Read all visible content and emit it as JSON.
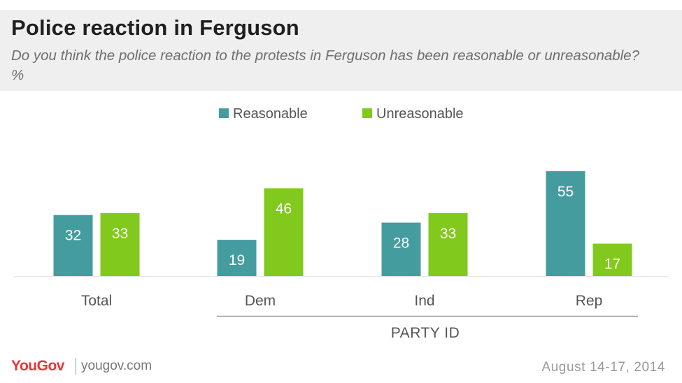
{
  "header": {
    "title": "Police reaction in Ferguson",
    "subtitle": "Do you think the police reaction to the protests in Ferguson has been reasonable or unreasonable? %"
  },
  "chart_data": {
    "type": "bar",
    "categories": [
      "Total",
      "Dem",
      "Ind",
      "Rep"
    ],
    "series": [
      {
        "name": "Reasonable",
        "color": "#459c9f",
        "values": [
          32,
          19,
          28,
          55
        ]
      },
      {
        "name": "Unreasonable",
        "color": "#82c91e",
        "values": [
          33,
          46,
          33,
          17
        ]
      }
    ],
    "group_label": "PARTY ID",
    "ylim": [
      0,
      60
    ],
    "legend_position": "top-center",
    "grid": false
  },
  "footer": {
    "logo": "YouGov",
    "site": "yougov.com",
    "date": "August 14-17, 2014"
  }
}
